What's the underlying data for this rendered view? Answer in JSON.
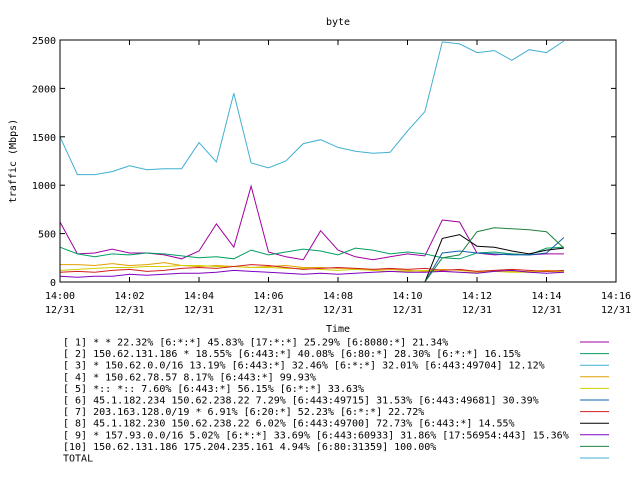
{
  "chart_data": {
    "type": "line",
    "title": "byte",
    "ylabel": "traffic (Mbps)",
    "xlabel": "Time",
    "ylim": [
      0,
      2500
    ],
    "xlim_minutes": [
      0,
      16
    ],
    "yticks": [
      "0",
      "500",
      "1000",
      "1500",
      "2000",
      "2500"
    ],
    "xticks": [
      {
        "time": "14:00",
        "date": "12/31"
      },
      {
        "time": "14:02",
        "date": "12/31"
      },
      {
        "time": "14:04",
        "date": "12/31"
      },
      {
        "time": "14:06",
        "date": "12/31"
      },
      {
        "time": "14:08",
        "date": "12/31"
      },
      {
        "time": "14:10",
        "date": "12/31"
      },
      {
        "time": "14:12",
        "date": "12/31"
      },
      {
        "time": "14:14",
        "date": "12/31"
      },
      {
        "time": "14:16",
        "date": "12/31"
      }
    ],
    "x_minutes": [
      0,
      0.5,
      1,
      1.5,
      2,
      2.5,
      3,
      3.5,
      4,
      4.5,
      5,
      5.5,
      6,
      6.5,
      7,
      7.5,
      8,
      8.5,
      9,
      9.5,
      10,
      10.5,
      11,
      11.5,
      12,
      12.5,
      13,
      13.5,
      14,
      14.5
    ],
    "series": [
      {
        "name": "[ 1] * * 22.32%  [6:*:*] 45.83% [17:*:*] 25.29% [6:8080:*] 21.34%",
        "color": "#a000a0",
        "values": [
          620,
          290,
          300,
          340,
          300,
          300,
          280,
          240,
          320,
          600,
          360,
          990,
          310,
          260,
          230,
          530,
          330,
          260,
          230,
          260,
          290,
          270,
          640,
          620,
          300,
          280,
          290,
          280,
          290,
          290
        ]
      },
      {
        "name": "[ 2] 150.62.131.186 * 18.55%  [6:443:*] 40.08% [6:80:*] 28.30% [6:*:*] 16.15%",
        "color": "#00a060",
        "values": [
          360,
          290,
          260,
          290,
          280,
          300,
          290,
          270,
          250,
          260,
          240,
          330,
          280,
          310,
          340,
          320,
          280,
          350,
          330,
          290,
          310,
          290,
          250,
          240,
          300,
          310,
          290,
          280,
          350,
          360
        ]
      },
      {
        "name": "[ 3] * 150.62.0.0/16 13.19%  [6:443:*] 32.46% [6:*:*] 32.01% [6:443:49704] 12.12%",
        "color": "#40b0d0",
        "values": [
          1500,
          1110,
          1110,
          1140,
          1200,
          1160,
          1170,
          1170,
          1440,
          1240,
          1950,
          1230,
          1180,
          1250,
          1430,
          1470,
          1390,
          1350,
          1330,
          1340,
          1560,
          1760,
          2480,
          2460,
          2370,
          2390,
          2290,
          2400,
          2370,
          2490
        ]
      },
      {
        "name": "[ 4] * 150.62.78.57 8.17%  [6:443:*] 99.93%",
        "color": "#e0a000",
        "values": [
          180,
          180,
          170,
          190,
          170,
          180,
          200,
          170,
          160,
          170,
          160,
          150,
          160,
          170,
          150,
          150,
          140,
          140,
          130,
          130,
          120,
          110,
          130,
          120,
          110,
          120,
          110,
          110,
          120,
          110
        ]
      },
      {
        "name": "[ 5] *:: *:: 7.60%  [6:443:*] 56.15% [6:*:*] 33.63%",
        "color": "#d0d000",
        "values": [
          120,
          130,
          140,
          150,
          150,
          160,
          160,
          170,
          170,
          160,
          160,
          150,
          150,
          140,
          140,
          130,
          120,
          130,
          120,
          110,
          110,
          120,
          110,
          100,
          100,
          110,
          100,
          100,
          110,
          100
        ]
      },
      {
        "name": "[ 6] 45.1.182.234 150.62.238.22 7.29%  [6:443:49715] 31.53% [6:443:49681] 30.39%",
        "color": "#1060b0",
        "values": [
          0,
          0,
          0,
          0,
          0,
          0,
          0,
          0,
          0,
          0,
          0,
          0,
          0,
          0,
          0,
          0,
          0,
          0,
          0,
          0,
          0,
          0,
          300,
          320,
          300,
          290,
          280,
          280,
          300,
          460
        ]
      },
      {
        "name": "[ 7] 203.163.128.0/19 * 6.91%  [6:20:*] 52.23% [6:*:*] 22.72%",
        "color": "#d02020",
        "values": [
          100,
          110,
          100,
          120,
          130,
          110,
          120,
          140,
          150,
          140,
          160,
          180,
          170,
          150,
          130,
          140,
          150,
          140,
          130,
          140,
          130,
          140,
          120,
          130,
          110,
          120,
          130,
          120,
          110,
          120
        ]
      },
      {
        "name": "[ 8] 45.1.182.230 150.62.238.22 6.02%  [6:443:49700] 72.73% [6:443:*] 14.55%",
        "color": "#000000",
        "values": [
          0,
          0,
          0,
          0,
          0,
          0,
          0,
          0,
          0,
          0,
          0,
          0,
          0,
          0,
          0,
          0,
          0,
          0,
          0,
          0,
          0,
          0,
          450,
          490,
          370,
          360,
          320,
          290,
          330,
          350
        ]
      },
      {
        "name": "[ 9] * 157.93.0.0/16 5.02%  [6:*:*] 33.69% [6:443:60933] 31.86% [17:56954:443] 15.36%",
        "color": "#8000c0",
        "values": [
          60,
          50,
          60,
          60,
          80,
          70,
          80,
          90,
          90,
          100,
          120,
          110,
          100,
          90,
          80,
          90,
          80,
          90,
          100,
          110,
          100,
          100,
          110,
          100,
          90,
          110,
          120,
          100,
          90,
          100
        ]
      },
      {
        "name": "[10] 150.62.131.186 175.204.235.161 4.94%  [6:80:31359] 100.00%",
        "color": "#208040",
        "values": [
          0,
          0,
          0,
          0,
          0,
          0,
          0,
          0,
          0,
          0,
          0,
          0,
          0,
          0,
          0,
          0,
          0,
          0,
          0,
          0,
          0,
          0,
          250,
          280,
          520,
          560,
          550,
          540,
          520,
          350
        ]
      },
      {
        "name": "TOTAL",
        "color": "#40b0d0",
        "values": []
      }
    ]
  }
}
